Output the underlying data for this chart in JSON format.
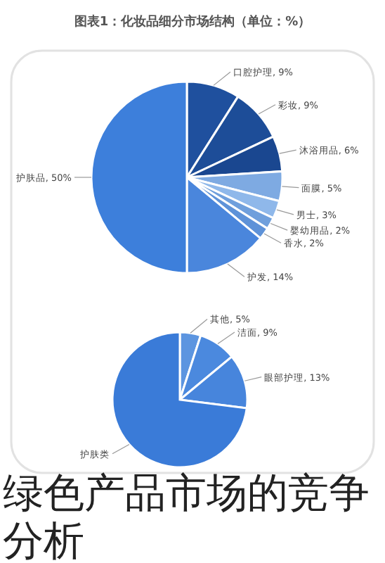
{
  "chart_data": [
    {
      "type": "pie",
      "title": "图表1：化妆品细分市场结构（单位：%）",
      "categories": [
        "口腔护理",
        "彩妆",
        "沐浴用品",
        "面膜",
        "男士",
        "婴幼用品",
        "香水",
        "护发",
        "护肤品"
      ],
      "values": [
        9,
        9,
        6,
        5,
        3,
        2,
        2,
        14,
        50
      ],
      "value_labels": [
        "9%",
        "9%",
        "6%",
        "5%",
        "3%",
        "2%",
        "2%",
        "14%",
        "50%"
      ],
      "colors": [
        "#1f509e",
        "#1d4d98",
        "#1a4790",
        "#7eaae2",
        "#8fb8ea",
        "#6f9fdc",
        "#5e92d8",
        "#4a86dc",
        "#3d7fdb"
      ]
    },
    {
      "type": "pie",
      "categories": [
        "其他",
        "洁面",
        "眼部护理",
        "护肤类"
      ],
      "values": [
        5,
        9,
        13,
        73
      ],
      "value_labels": [
        "5%",
        "9%",
        "13%",
        null
      ],
      "colors": [
        "#5c95e0",
        "#4b89de",
        "#4785dc",
        "#3a7bd8"
      ],
      "annotations": [
        "绿色产品市场的竞争分析"
      ]
    }
  ]
}
